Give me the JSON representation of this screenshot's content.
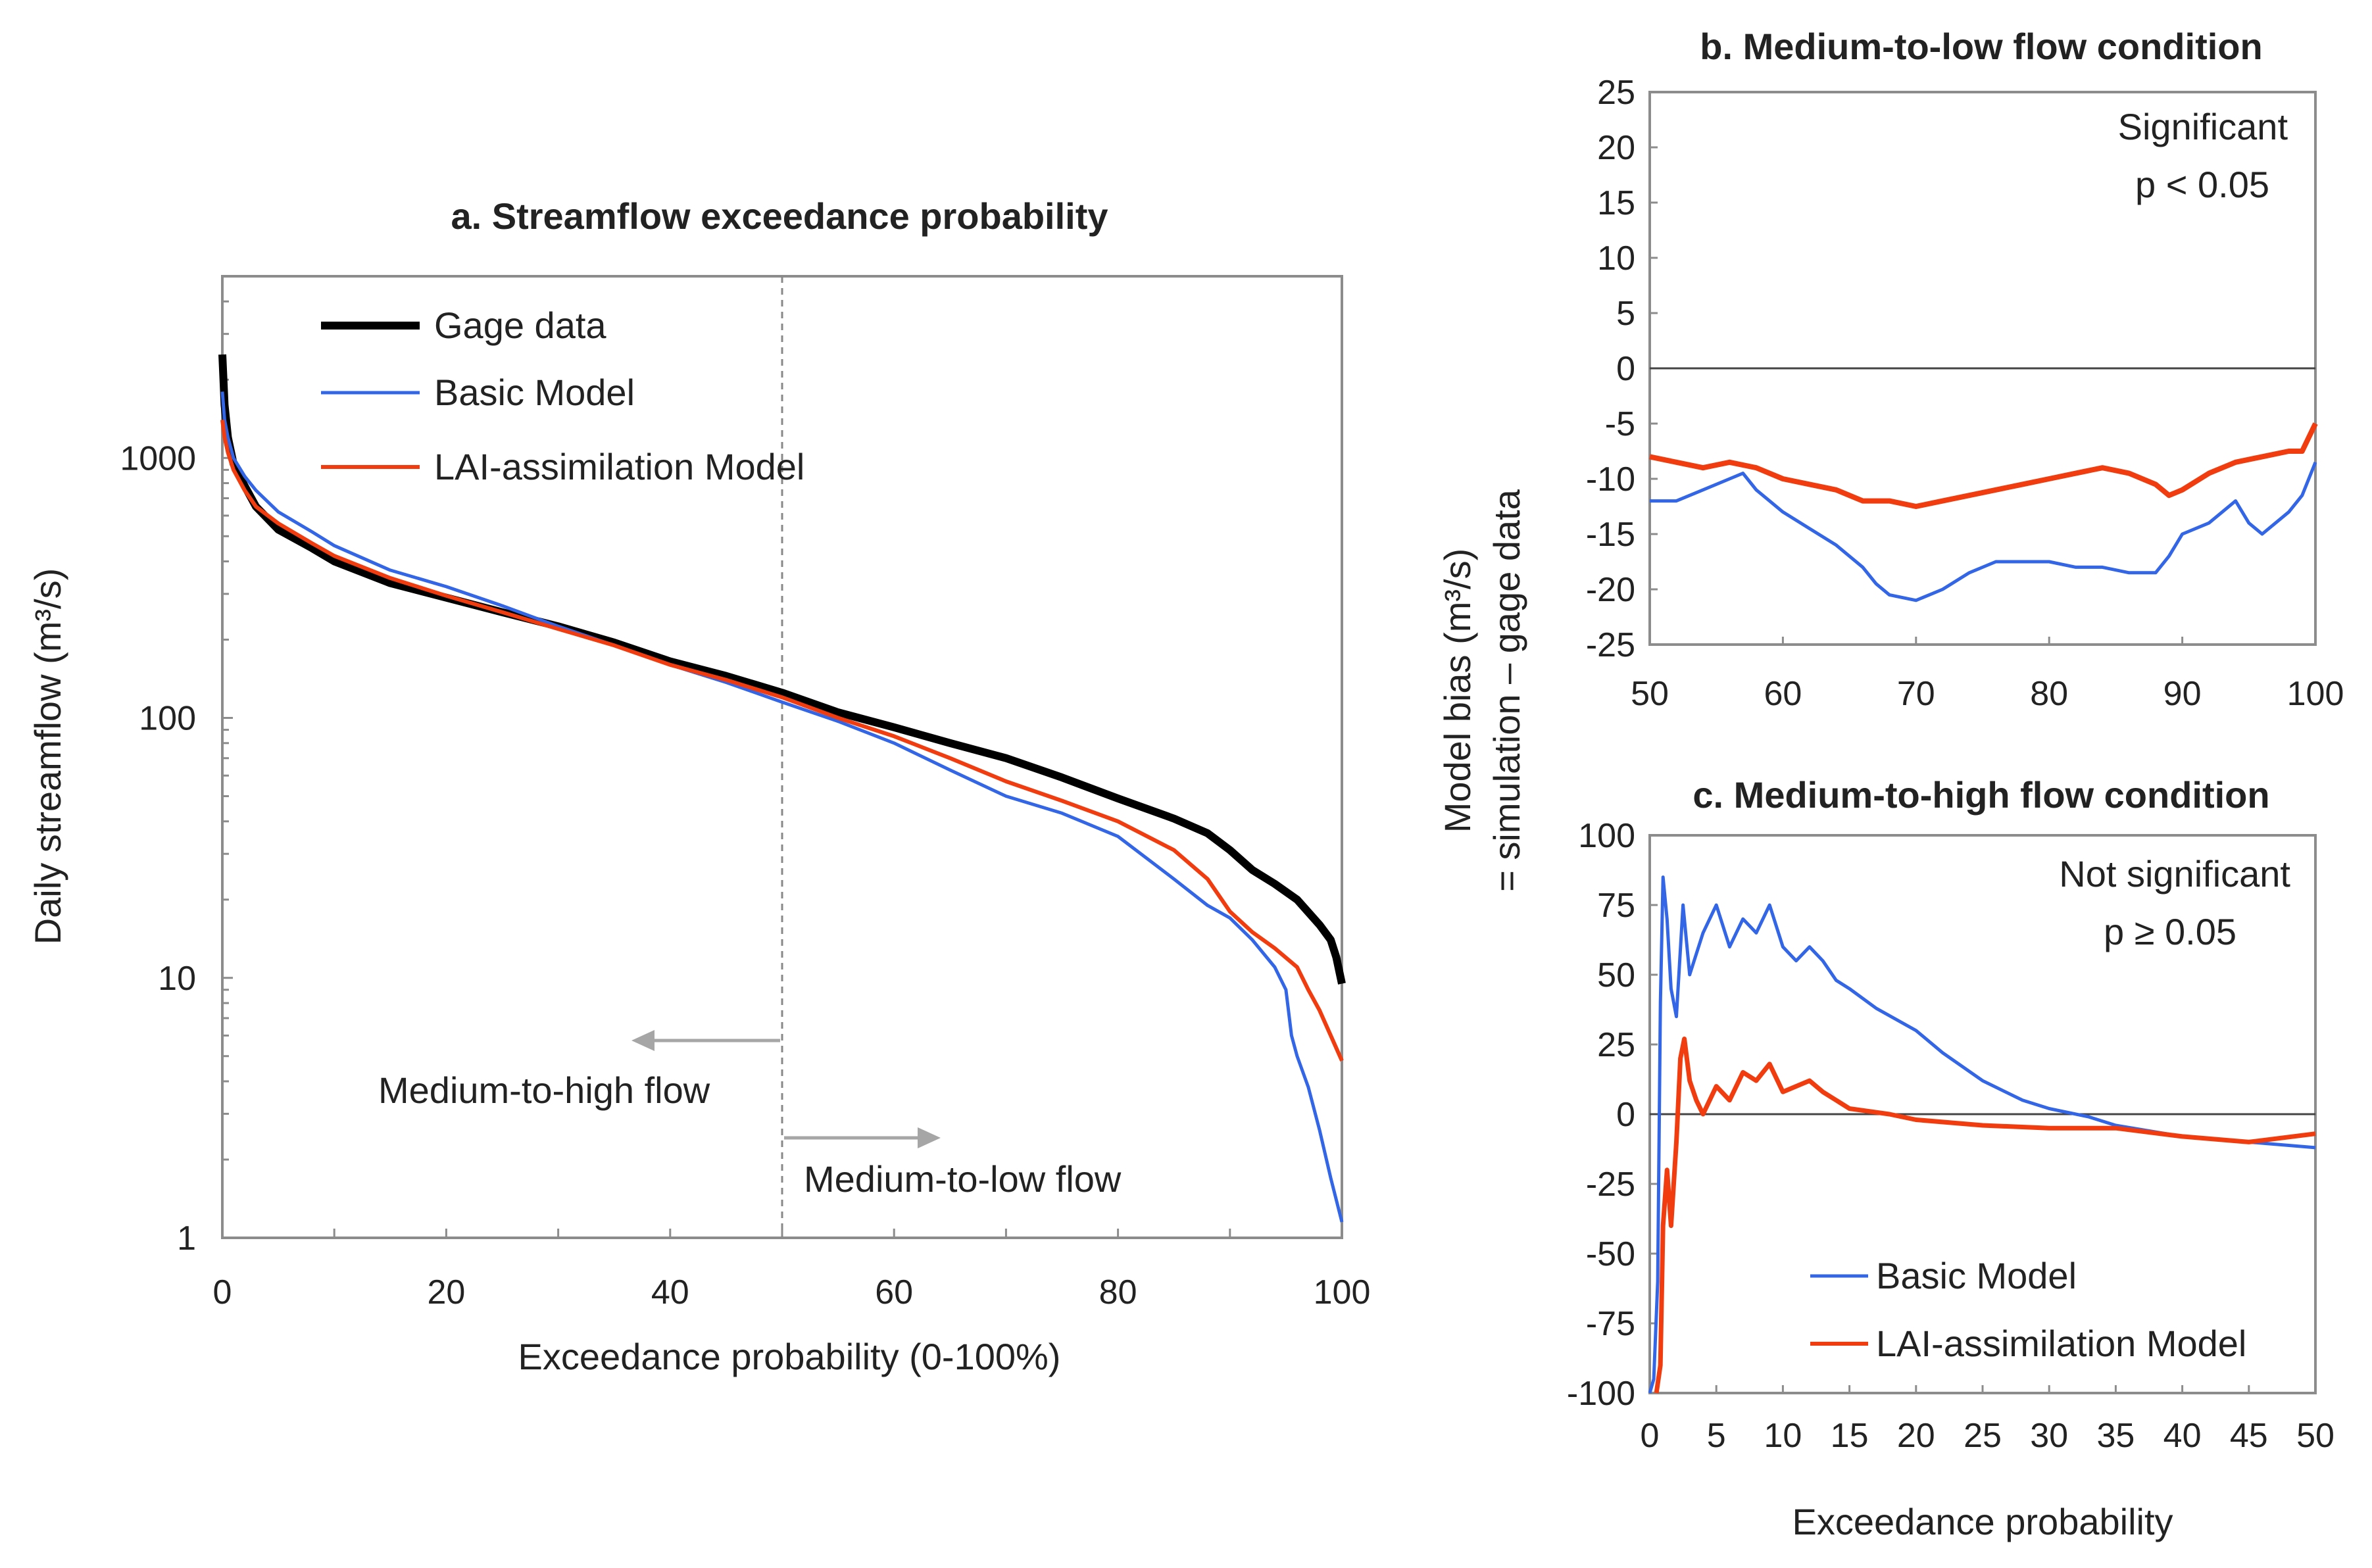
{
  "chart_data": [
    {
      "id": "a",
      "type": "line",
      "title": "a. Streamflow exceedance probability",
      "xlabel": "Exceedance probability (0-100%)",
      "ylabel": "Daily streamflow (m³/s)",
      "yscale": "log",
      "xlim": [
        0,
        100
      ],
      "ylim": [
        1,
        5000
      ],
      "xticks": [
        "0",
        "20",
        "40",
        "60",
        "80",
        "100"
      ],
      "yticks": [
        "1",
        "10",
        "100",
        "1000"
      ],
      "legend": "top-left",
      "series": [
        {
          "name": "Gage data",
          "color": "#000000",
          "x": [
            0,
            0.2,
            0.5,
            1,
            2,
            3,
            5,
            8,
            10,
            15,
            20,
            25,
            30,
            35,
            40,
            45,
            50,
            55,
            60,
            65,
            70,
            75,
            80,
            85,
            88,
            90,
            92,
            94,
            96,
            98,
            99,
            99.5,
            100
          ],
          "y": [
            2500,
            1600,
            1200,
            950,
            780,
            650,
            530,
            450,
            400,
            330,
            290,
            255,
            225,
            195,
            165,
            145,
            125,
            105,
            92,
            80,
            70,
            59,
            49,
            41,
            36,
            31,
            26,
            23,
            20,
            16,
            14,
            12,
            9.5
          ]
        },
        {
          "name": "Basic Model",
          "color": "#3366e6",
          "x": [
            0,
            0.2,
            0.5,
            1,
            2,
            3,
            5,
            8,
            10,
            15,
            20,
            25,
            30,
            35,
            40,
            45,
            50,
            55,
            60,
            65,
            70,
            75,
            80,
            85,
            88,
            90,
            92,
            94,
            95,
            95.5,
            96,
            97,
            98,
            99,
            100
          ],
          "y": [
            1800,
            1400,
            1200,
            1000,
            850,
            750,
            620,
            520,
            460,
            370,
            320,
            270,
            225,
            190,
            160,
            137,
            115,
            97,
            80,
            63,
            50,
            43,
            35,
            24,
            19,
            17,
            14,
            11,
            9,
            6,
            5,
            3.8,
            2.6,
            1.7,
            1.15
          ]
        },
        {
          "name": "LAI-assimilation Model",
          "color": "#f03c0f",
          "x": [
            0,
            0.2,
            0.5,
            1,
            2,
            3,
            5,
            8,
            10,
            15,
            20,
            25,
            30,
            35,
            40,
            45,
            50,
            55,
            60,
            65,
            70,
            75,
            80,
            85,
            88,
            90,
            92,
            94,
            96,
            97,
            98,
            99,
            100
          ],
          "y": [
            1400,
            1200,
            1050,
            900,
            750,
            650,
            560,
            470,
            420,
            345,
            295,
            255,
            220,
            190,
            160,
            140,
            120,
            100,
            85,
            70,
            57,
            48,
            40,
            31,
            24,
            18,
            15,
            13,
            11,
            9,
            7.5,
            6,
            4.8
          ]
        }
      ],
      "annotations": {
        "divider_x": 50,
        "left_text": "Medium-to-high flow",
        "right_text": "Medium-to-low flow"
      }
    },
    {
      "id": "b",
      "type": "line",
      "title": "b. Medium-to-low flow condition",
      "xlim": [
        50,
        100
      ],
      "ylim": [
        -25,
        25
      ],
      "xticks": [
        "50",
        "60",
        "70",
        "80",
        "90",
        "100"
      ],
      "yticks": [
        "-25",
        "-20",
        "-15",
        "-10",
        "-5",
        "0",
        "5",
        "10",
        "15",
        "20",
        "25"
      ],
      "significance": [
        "Significant",
        "p < 0.05"
      ],
      "series": [
        {
          "name": "Basic Model",
          "color": "#3366e6",
          "x": [
            50,
            52,
            54,
            56,
            57,
            58,
            60,
            62,
            64,
            66,
            67,
            68,
            70,
            71,
            72,
            74,
            76,
            78,
            80,
            82,
            84,
            86,
            88,
            89,
            90,
            92,
            93,
            94,
            95,
            96,
            97,
            98,
            99,
            100
          ],
          "y": [
            -12,
            -12,
            -11,
            -10,
            -9.5,
            -11,
            -13,
            -14.5,
            -16,
            -18,
            -19.5,
            -20.5,
            -21,
            -20.5,
            -20,
            -18.5,
            -17.5,
            -17.5,
            -17.5,
            -18,
            -18,
            -18.5,
            -18.5,
            -17,
            -15,
            -14,
            -13,
            -12,
            -14,
            -15,
            -14,
            -13,
            -11.5,
            -8.5
          ]
        },
        {
          "name": "LAI-assimilation Model",
          "color": "#f03c0f",
          "x": [
            50,
            52,
            54,
            56,
            58,
            60,
            62,
            64,
            66,
            68,
            70,
            72,
            74,
            76,
            78,
            80,
            82,
            84,
            86,
            88,
            89,
            90,
            92,
            94,
            96,
            98,
            99,
            100
          ],
          "y": [
            -8,
            -8.5,
            -9,
            -8.5,
            -9,
            -10,
            -10.5,
            -11,
            -12,
            -12,
            -12.5,
            -12,
            -11.5,
            -11,
            -10.5,
            -10,
            -9.5,
            -9,
            -9.5,
            -10.5,
            -11.5,
            -11,
            -9.5,
            -8.5,
            -8,
            -7.5,
            -7.5,
            -5
          ]
        }
      ]
    },
    {
      "id": "c",
      "type": "line",
      "title": "c. Medium-to-high flow condition",
      "xlabel": "Exceedance probability",
      "xlim": [
        0,
        50
      ],
      "ylim": [
        -100,
        100
      ],
      "xticks": [
        "0",
        "5",
        "10",
        "15",
        "20",
        "25",
        "30",
        "35",
        "40",
        "45",
        "50"
      ],
      "yticks": [
        "-100",
        "-75",
        "-50",
        "-25",
        "0",
        "25",
        "50",
        "75",
        "100"
      ],
      "significance": [
        "Not significant",
        "p ≥ 0.05"
      ],
      "legend": "bottom-center",
      "series": [
        {
          "name": "Basic Model",
          "color": "#3366e6",
          "x": [
            0,
            0.3,
            0.6,
            0.8,
            1.0,
            1.3,
            1.6,
            2.0,
            2.5,
            3.0,
            4.0,
            5.0,
            6.0,
            7.0,
            8.0,
            9.0,
            10.0,
            11.0,
            12.0,
            13.0,
            14.0,
            15.0,
            17.0,
            20.0,
            22.0,
            25.0,
            28.0,
            30.0,
            33.0,
            35.0,
            40.0,
            45.0,
            50.0
          ],
          "y": [
            -100,
            -95,
            -60,
            40,
            85,
            70,
            45,
            35,
            75,
            50,
            65,
            75,
            60,
            70,
            65,
            75,
            60,
            55,
            60,
            55,
            48,
            45,
            38,
            30,
            22,
            12,
            5,
            2,
            -1,
            -4,
            -8,
            -10,
            -12
          ]
        },
        {
          "name": "LAI-assimilation Model",
          "color": "#f03c0f",
          "x": [
            0.5,
            0.8,
            1.0,
            1.3,
            1.6,
            2.0,
            2.3,
            2.6,
            3.0,
            3.5,
            4.0,
            5.0,
            6.0,
            7.0,
            8.0,
            9.0,
            10.0,
            11.0,
            12.0,
            13.0,
            14.0,
            15.0,
            18.0,
            20.0,
            25.0,
            30.0,
            35.0,
            40.0,
            45.0,
            50.0
          ],
          "y": [
            -100,
            -90,
            -40,
            -20,
            -40,
            -10,
            20,
            27,
            12,
            5,
            0,
            10,
            5,
            15,
            12,
            18,
            8,
            10,
            12,
            8,
            5,
            2,
            0,
            -2,
            -4,
            -5,
            -5,
            -8,
            -10,
            -7
          ]
        }
      ]
    }
  ],
  "shared_ylabel": [
    "Model bias (m³/s)",
    "= simulation – gage data"
  ]
}
